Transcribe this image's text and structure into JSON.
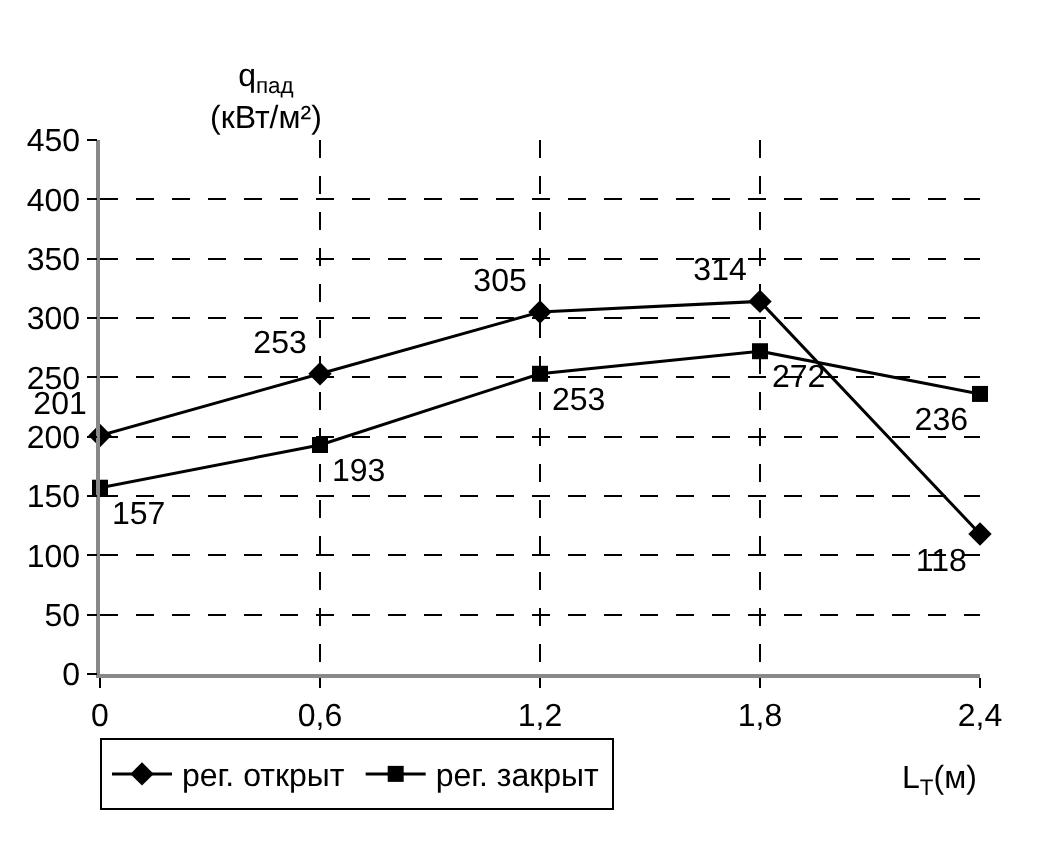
{
  "chart_data": {
    "type": "line",
    "xlabel": "L$_{Т}$(м)",
    "ylabel": "q$_{пад}$\n(кВт/м²)",
    "x": [
      0,
      0.6,
      1.2,
      1.8,
      2.4
    ],
    "series": [
      {
        "name": "рег. открыт",
        "color": "#000000",
        "marker": "diamond",
        "values": [
          201,
          253,
          305,
          314,
          118
        ]
      },
      {
        "name": "рег. закрыт",
        "color": "#000000",
        "marker": "square",
        "values": [
          157,
          193,
          253,
          272,
          236
        ]
      }
    ],
    "xlim": [
      0,
      2.4
    ],
    "xticks": [
      {
        "value": 0,
        "label": "0"
      },
      {
        "value": 0.6,
        "label": "0,6"
      },
      {
        "value": 1.2,
        "label": "1,2"
      },
      {
        "value": 1.8,
        "label": "1,8"
      },
      {
        "value": 2.4,
        "label": "2,4"
      }
    ],
    "ylim": [
      0,
      450
    ],
    "yticks": [
      0,
      50,
      100,
      150,
      200,
      250,
      300,
      350,
      400,
      450
    ],
    "grid": true,
    "legend": "bottom",
    "data_labels": true,
    "line_style": "solid"
  }
}
